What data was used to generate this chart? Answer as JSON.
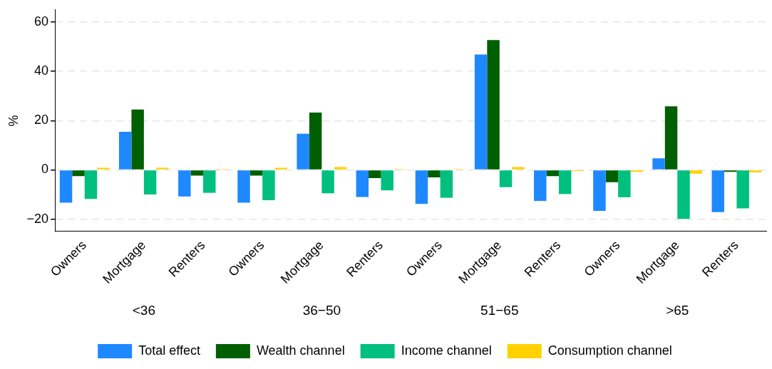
{
  "chart_data": {
    "type": "bar",
    "ylabel": "%",
    "categories": [
      "Owners",
      "Mortgage",
      "Renters",
      "Owners",
      "Mortgage",
      "Renters",
      "Owners",
      "Mortgage",
      "Renters",
      "Owners",
      "Mortgage",
      "Renters"
    ],
    "annotations": [
      "<36",
      "36−50",
      "51−65",
      ">65"
    ],
    "series": [
      {
        "name": "Total effect",
        "color": "#1e88ff",
        "values": [
          -13.3,
          15.5,
          -10.8,
          -13.3,
          14.7,
          -11.0,
          -13.8,
          46.9,
          -12.6,
          -16.6,
          4.7,
          -17.1
        ]
      },
      {
        "name": "Wealth channel",
        "color": "#005f00",
        "values": [
          -2.5,
          24.5,
          -2.3,
          -2.3,
          23.3,
          -3.3,
          -3.0,
          52.7,
          -2.5,
          -5.0,
          25.8,
          -0.8
        ]
      },
      {
        "name": "Income channel",
        "color": "#00bf7f",
        "values": [
          -11.8,
          -10.0,
          -9.3,
          -12.3,
          -9.5,
          -8.3,
          -11.3,
          -7.0,
          -9.8,
          -11.1,
          -19.9,
          -15.6
        ]
      },
      {
        "name": "Consumption channel",
        "color": "#ffd200",
        "values": [
          0.9,
          0.9,
          0.4,
          0.9,
          1.2,
          0.4,
          0.4,
          1.2,
          -0.5,
          -0.8,
          -1.5,
          -1.0
        ]
      }
    ],
    "ylim": [
      -25,
      65
    ],
    "yticks": [
      {
        "value": -20,
        "label": "−20"
      },
      0,
      20,
      40,
      60
    ],
    "grid": "y",
    "legend": "bottom"
  }
}
